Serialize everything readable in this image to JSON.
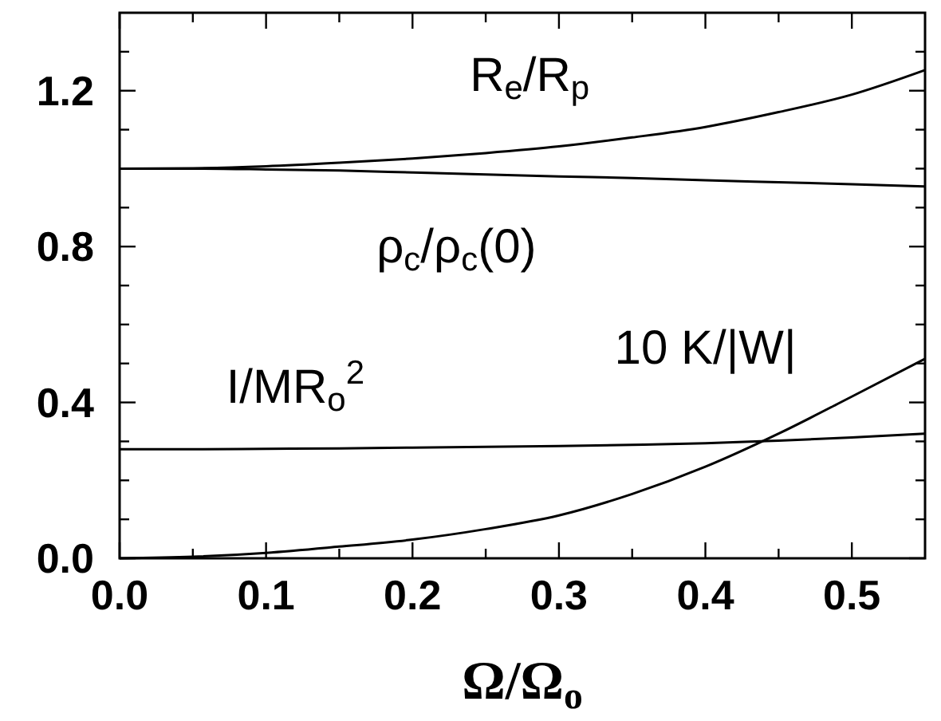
{
  "chart_data": {
    "type": "line",
    "xlabel": "Ω/Ω$_{o}$",
    "xlim": [
      0,
      0.55
    ],
    "xticks": [
      {
        "value": 0,
        "label": "0.0"
      },
      0.1,
      0.2,
      0.3,
      0.4,
      0.5,
      {
        "value": 0.05,
        "label": null
      },
      {
        "value": 0.15,
        "label": null
      },
      {
        "value": 0.25,
        "label": null
      },
      {
        "value": 0.35,
        "label": null
      },
      {
        "value": 0.45,
        "label": null
      }
    ],
    "ylim": [
      0,
      1.4
    ],
    "yticks": [
      {
        "value": 0,
        "label": "0.0"
      },
      0.4,
      0.8,
      1.2,
      {
        "value": 0.1,
        "label": null
      },
      {
        "value": 0.2,
        "label": null
      },
      {
        "value": 0.3,
        "label": null
      },
      {
        "value": 0.5,
        "label": null
      },
      {
        "value": 0.6,
        "label": null
      },
      {
        "value": 0.7,
        "label": null
      },
      {
        "value": 0.9,
        "label": null
      },
      {
        "value": 1.0,
        "label": null
      },
      {
        "value": 1.1,
        "label": null
      },
      {
        "value": 1.3,
        "label": null
      }
    ],
    "x": [
      0,
      0.05,
      0.1,
      0.15,
      0.2,
      0.25,
      0.3,
      0.35,
      0.4,
      0.45,
      0.5,
      0.55
    ],
    "series": [
      {
        "name": "R$_{e}$/R$_{p}$",
        "color": "#000000",
        "values": [
          1.0,
          1.001,
          1.006,
          1.015,
          1.026,
          1.04,
          1.057,
          1.08,
          1.107,
          1.145,
          1.19,
          1.253
        ]
      },
      {
        "name": "ρ$_{c}$/ρ$_{c}$(0)",
        "color": "#000000",
        "values": [
          1.0,
          1.0,
          0.998,
          0.995,
          0.99,
          0.985,
          0.98,
          0.976,
          0.97,
          0.965,
          0.96,
          0.954
        ]
      },
      {
        "name": "I/MR$_{o}$$^{2}$",
        "color": "#000000",
        "values": [
          0.28,
          0.28,
          0.281,
          0.282,
          0.284,
          0.286,
          0.288,
          0.291,
          0.295,
          0.302,
          0.31,
          0.32
        ]
      },
      {
        "name": "10 K/|W|",
        "color": "#000000",
        "values": [
          0,
          0.004,
          0.014,
          0.03,
          0.048,
          0.075,
          0.11,
          0.165,
          0.235,
          0.32,
          0.415,
          0.512
        ]
      }
    ],
    "grid": false,
    "line_style": "solid"
  }
}
